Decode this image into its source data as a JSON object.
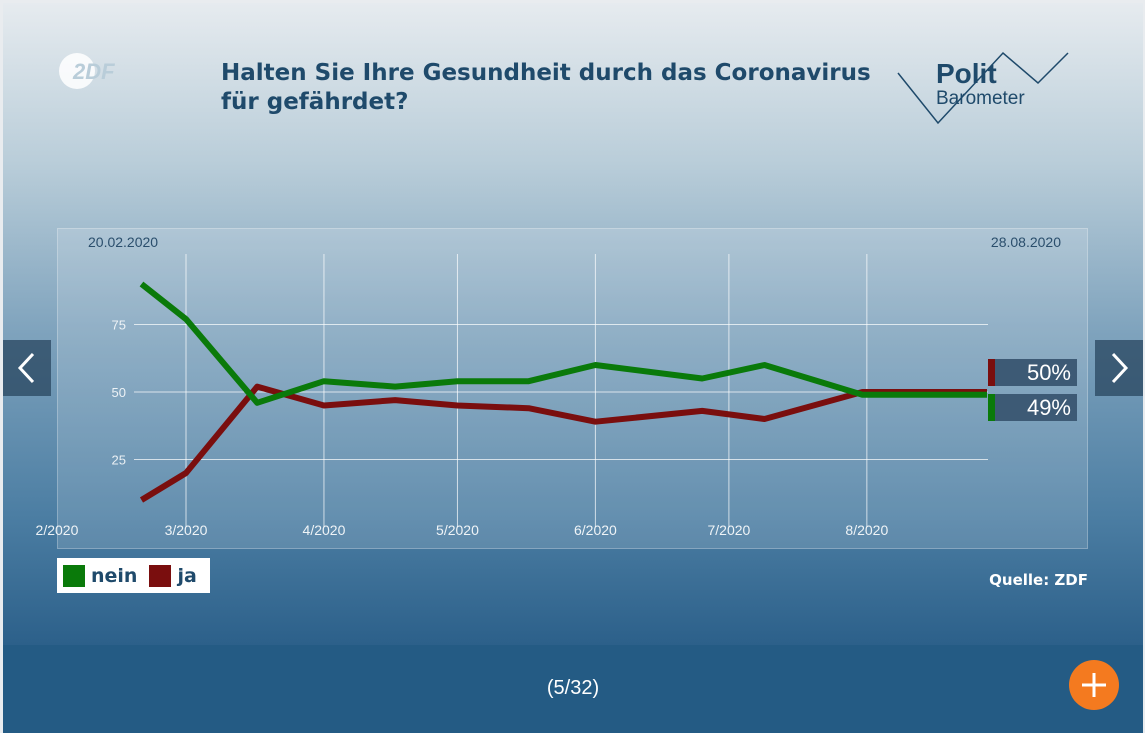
{
  "slide": {
    "title": "Halten Sie Ihre Gesundheit durch das Coronavirus für gefährdet?",
    "counter": "(5/32)",
    "source": "Quelle: ZDF",
    "logo_left": "ZDF",
    "logo_right": {
      "line1": "Polit",
      "line2": "Barometer"
    }
  },
  "nav": {
    "prev_icon": "chevron-left-icon",
    "next_icon": "chevron-right-icon",
    "add_icon": "plus-icon",
    "add_color": "#f47a1f"
  },
  "legend": [
    {
      "label": "nein",
      "color": "#0a7a0a"
    },
    {
      "label": "ja",
      "color": "#7a0e0e"
    }
  ],
  "chart_data": {
    "type": "line",
    "title": "Halten Sie Ihre Gesundheit durch das Coronavirus für gefährdet?",
    "start_label": "20.02.2020",
    "end_label": "28.08.2020",
    "x": [
      "2020-02-20",
      "2020-03-01",
      "2020-03-17",
      "2020-04-01",
      "2020-04-17",
      "2020-05-01",
      "2020-05-17",
      "2020-06-01",
      "2020-06-25",
      "2020-07-09",
      "2020-07-31",
      "2020-08-28"
    ],
    "x_ticks": [
      "2/2020",
      "3/2020",
      "4/2020",
      "5/2020",
      "6/2020",
      "7/2020",
      "8/2020"
    ],
    "y_ticks": [
      25,
      50,
      75
    ],
    "ylim": [
      0,
      100
    ],
    "grid": true,
    "legend_position": "bottom-left",
    "series": [
      {
        "name": "nein",
        "color": "#0a7a0a",
        "values": [
          90,
          77,
          46,
          54,
          52,
          54,
          54,
          60,
          55,
          60,
          49,
          49
        ],
        "end_label": "49%"
      },
      {
        "name": "ja",
        "color": "#7a0e0e",
        "values": [
          10,
          20,
          52,
          45,
          47,
          45,
          44,
          39,
          43,
          40,
          50,
          50
        ],
        "end_label": "50%"
      }
    ]
  }
}
